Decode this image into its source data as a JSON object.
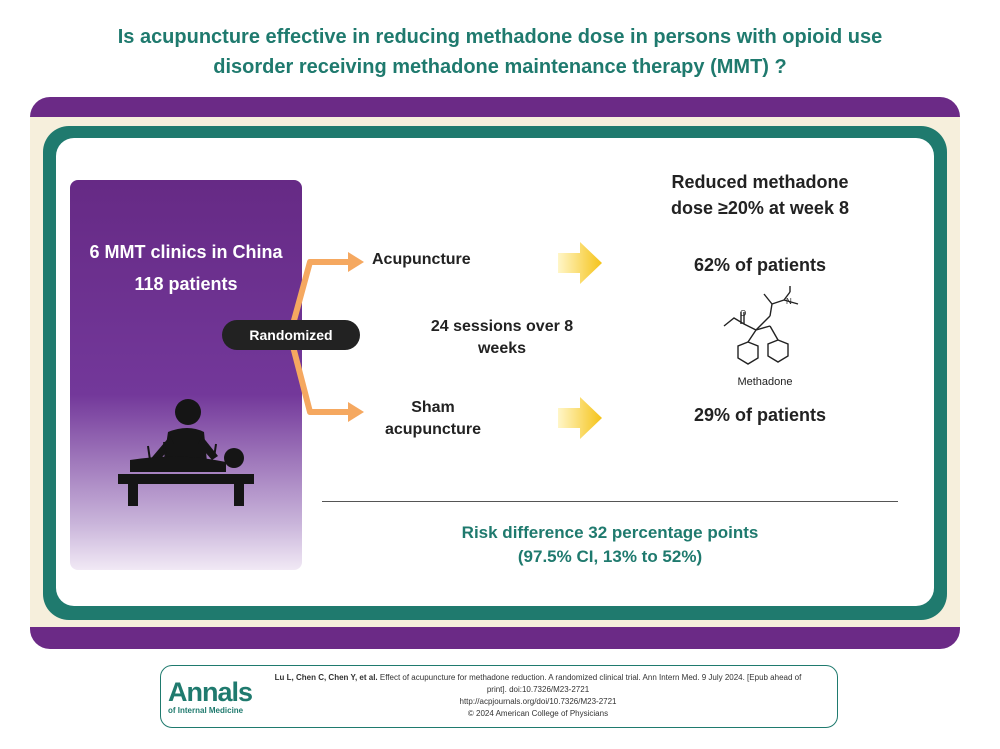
{
  "header": {
    "title_line1": "Is acupuncture effective in reducing methadone dose in persons with opioid use",
    "title_line2": "disorder receiving methadone maintenance therapy (MMT) ?"
  },
  "study": {
    "clinics": "6 MMT clinics in China",
    "patients": "118 patients",
    "randomized_label": "Randomized"
  },
  "arms": {
    "treatment": "Acupuncture",
    "control_line1": "Sham",
    "control_line2": "acupuncture",
    "sessions_line1": "24 sessions over 8",
    "sessions_line2": "weeks"
  },
  "outcome": {
    "heading_line1": "Reduced methadone",
    "heading_line2": "dose ≥20% at week 8",
    "treatment_result": "62% of patients",
    "control_result": "29% of patients",
    "molecule_label": "Methadone",
    "risk_line1": "Risk difference 32 percentage points",
    "risk_line2": "(97.5% CI, 13% to 52%)"
  },
  "footer": {
    "logo_main": "Annals",
    "logo_sub": "of Internal Medicine",
    "citation_authors": "Lu L, Chen C, Chen Y, et al.",
    "citation_line1": "Effect of acupuncture for methadone reduction. A randomized clinical trial. Ann Intern Med. 9 July 2024. [Epub ahead of",
    "citation_line2": "print]. doi:10.7326/M23-2721",
    "citation_line3": "http://acpjournals.org/doi/10.7326/M23-2721",
    "copyright": "© 2024 American College of Physicians"
  },
  "colors": {
    "teal": "#1f7a6e",
    "purple": "#6b2a86",
    "arrow_orange": "#f5a860",
    "arrow_yellow": "#f5c318"
  }
}
